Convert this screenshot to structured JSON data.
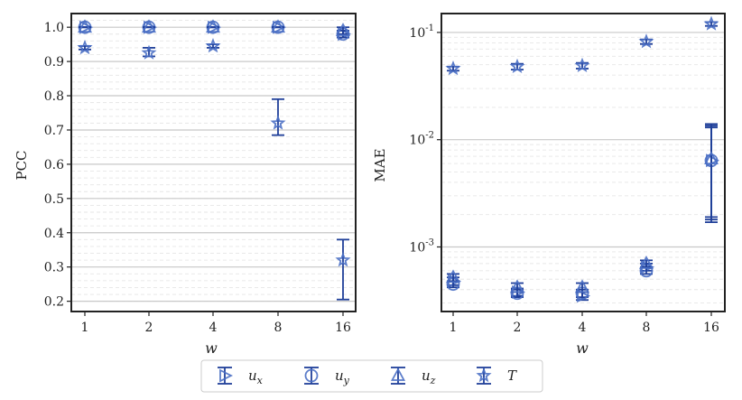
{
  "chart_data": [
    {
      "type": "scatter",
      "xlabel": "w",
      "ylabel": "PCC",
      "y_scale": "linear",
      "ylim": [
        0.17,
        1.04
      ],
      "categories": [
        "1",
        "2",
        "4",
        "8",
        "16"
      ],
      "y_ticks": [
        "0.2",
        "0.3",
        "0.4",
        "0.5",
        "0.6",
        "0.7",
        "0.8",
        "0.9",
        "1.0"
      ],
      "grid": true,
      "series": [
        {
          "name": "u_x",
          "values": [
            1.0,
            1.0,
            1.0,
            1.0,
            0.98
          ],
          "err_low": [
            1.0,
            1.0,
            1.0,
            1.0,
            0.97
          ],
          "err_high": [
            1.0,
            1.0,
            1.0,
            1.0,
            0.99
          ]
        },
        {
          "name": "u_y",
          "values": [
            1.0,
            1.0,
            1.0,
            1.0,
            0.98
          ],
          "err_low": [
            1.0,
            1.0,
            1.0,
            1.0,
            0.97
          ],
          "err_high": [
            1.0,
            1.0,
            1.0,
            1.0,
            0.99
          ]
        },
        {
          "name": "u_z",
          "values": [
            1.0,
            1.0,
            1.0,
            1.0,
            0.99
          ],
          "err_low": [
            1.0,
            1.0,
            1.0,
            1.0,
            0.98
          ],
          "err_high": [
            1.0,
            1.0,
            1.0,
            1.0,
            1.0
          ]
        },
        {
          "name": "T",
          "values": [
            0.94,
            0.925,
            0.945,
            0.72,
            0.32
          ],
          "err_low": [
            0.935,
            0.915,
            0.94,
            0.685,
            0.205
          ],
          "err_high": [
            0.945,
            0.94,
            0.95,
            0.79,
            0.38
          ]
        }
      ]
    },
    {
      "type": "scatter",
      "xlabel": "w",
      "ylabel": "MAE",
      "y_scale": "log",
      "ylim": [
        0.00025,
        0.15
      ],
      "categories": [
        "1",
        "2",
        "4",
        "8",
        "16"
      ],
      "y_ticks": [
        "10^-3",
        "10^-2",
        "10^-1"
      ],
      "grid": true,
      "series": [
        {
          "name": "u_x",
          "values": [
            0.00048,
            0.00038,
            0.00035,
            0.00065,
            0.0064
          ],
          "err_low": [
            0.00044,
            0.00035,
            0.00032,
            0.0006,
            0.0017
          ],
          "err_high": [
            0.00052,
            0.00041,
            0.00038,
            0.0007,
            0.013
          ]
        },
        {
          "name": "u_y",
          "values": [
            0.00045,
            0.00037,
            0.00037,
            0.0006,
            0.0064
          ],
          "err_low": [
            0.00042,
            0.00034,
            0.00034,
            0.00056,
            0.0018
          ],
          "err_high": [
            0.00048,
            0.0004,
            0.0004,
            0.00064,
            0.014
          ]
        },
        {
          "name": "u_z",
          "values": [
            0.00052,
            0.00042,
            0.00042,
            0.0007,
            0.0066
          ],
          "err_low": [
            0.00048,
            0.00038,
            0.00038,
            0.00065,
            0.0019
          ],
          "err_high": [
            0.00056,
            0.00046,
            0.00046,
            0.00075,
            0.0135
          ]
        },
        {
          "name": "T",
          "values": [
            0.046,
            0.048,
            0.049,
            0.082,
            0.12
          ],
          "err_low": [
            0.044,
            0.045,
            0.046,
            0.078,
            0.115
          ],
          "err_high": [
            0.048,
            0.051,
            0.052,
            0.086,
            0.125
          ]
        }
      ]
    }
  ],
  "legend": {
    "placement": "bottom-center",
    "items": [
      {
        "label": "u_x",
        "base": "u",
        "sub": "x",
        "marker": "triangle-right-icon"
      },
      {
        "label": "u_y",
        "base": "u",
        "sub": "y",
        "marker": "circle-icon"
      },
      {
        "label": "u_z",
        "base": "u",
        "sub": "z",
        "marker": "triangle-up-icon"
      },
      {
        "label": "T",
        "base": "T",
        "sub": "",
        "marker": "star-icon"
      }
    ]
  },
  "colors": {
    "marker": "#4a6fc4",
    "errorbar": "#1f3f99",
    "grid": "#c8c8c8",
    "minor_grid": "#e6e6e6",
    "axes": "#222222"
  }
}
